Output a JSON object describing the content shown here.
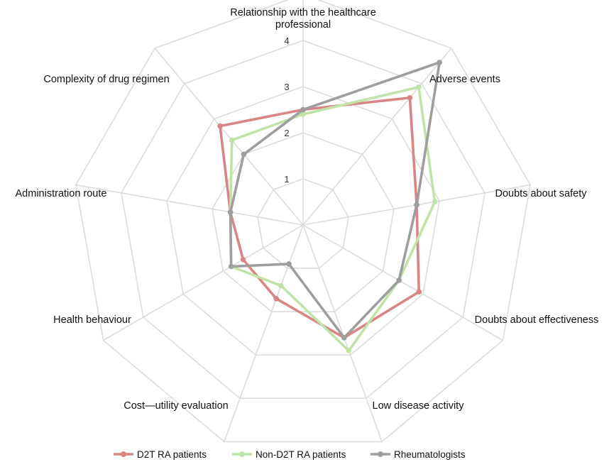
{
  "chart_data": {
    "type": "radar",
    "axes": [
      "Relationship with the healthcare professional",
      "Adverse events",
      "Doubts about safety",
      "Doubts about effectiveness",
      "Low disease activity",
      "Cost—utility evaluation",
      "Health behaviour",
      "Administration route",
      "Complexity of drug regimen"
    ],
    "axis_label_lines": [
      [
        "Relationship with the healthcare",
        "professional"
      ],
      [
        "Adverse events"
      ],
      [
        "Doubts about safety"
      ],
      [
        "Doubts about effectiveness"
      ],
      [
        "Low disease activity"
      ],
      [
        "Cost—utility evaluation"
      ],
      [
        "Health behaviour"
      ],
      [
        "Administration route"
      ],
      [
        "Complexity of drug regimen"
      ]
    ],
    "ticks": [
      "1",
      "2",
      "3",
      "4",
      "5"
    ],
    "range": [
      0,
      5
    ],
    "grid": true,
    "legend_position": "bottom",
    "series": [
      {
        "name": "D2T RA patients",
        "color": "#d98585",
        "values": [
          2.5,
          3.6,
          2.5,
          2.9,
          2.6,
          1.7,
          1.5,
          1.6,
          2.8
        ]
      },
      {
        "name": "Non-D2T RA patients",
        "color": "#c2e3a8",
        "values": [
          2.4,
          3.9,
          2.9,
          2.4,
          2.9,
          1.4,
          1.8,
          1.6,
          2.4
        ]
      },
      {
        "name": "Rheumatologists",
        "color": "#9e9e9e",
        "values": [
          2.5,
          4.6,
          2.5,
          2.4,
          2.6,
          0.9,
          1.8,
          1.6,
          2.0
        ]
      }
    ]
  }
}
